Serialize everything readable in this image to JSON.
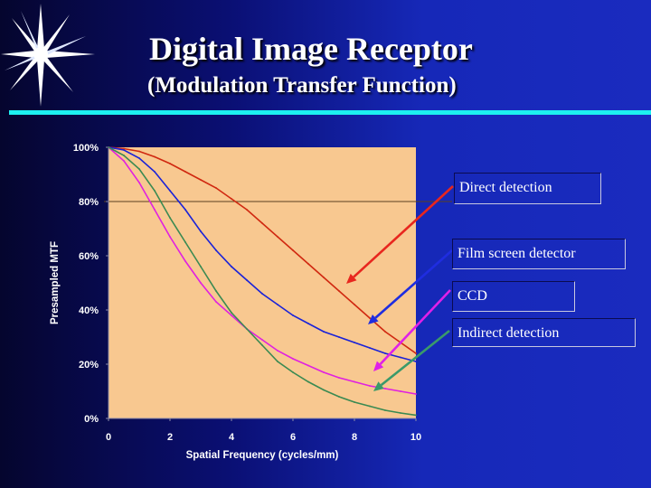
{
  "slide": {
    "title": "Digital Image Receptor",
    "subtitle": "(Modulation Transfer Function)"
  },
  "legend": [
    {
      "label": "Direct detection",
      "arrow_color": "#e8261e"
    },
    {
      "label": "Film screen detector",
      "arrow_color": "#1f2de0"
    },
    {
      "label": "CCD",
      "arrow_color": "#e020e8"
    },
    {
      "label": "Indirect detection",
      "arrow_color": "#3a9a6a"
    }
  ],
  "colors": {
    "plot_background": "#f8c890",
    "reference_line": "#5a4020",
    "direct": "#d02810",
    "film_screen": "#1a22d8",
    "ccd": "#e020e0",
    "indirect": "#3a8a52",
    "accent_bar": "#1df0f0"
  },
  "icons": {
    "decoration": "starburst-icon"
  },
  "chart_data": {
    "type": "line",
    "xlabel": "Spatial Frequency (cycles/mm)",
    "ylabel": "Presampled MTF",
    "xlim": [
      0,
      10
    ],
    "ylim": [
      0,
      100
    ],
    "xticks": [
      "0",
      "2",
      "4",
      "6",
      "8",
      "10"
    ],
    "yticks": [
      "0%",
      "20%",
      "40%",
      "60%",
      "80%",
      "100%"
    ],
    "grid": false,
    "reference_line_y": 80,
    "series": [
      {
        "name": "Direct detection",
        "color": "#d02810",
        "x": [
          0,
          0.5,
          1,
          1.5,
          2,
          2.5,
          3,
          3.5,
          4,
          4.5,
          5,
          5.5,
          6,
          6.5,
          7,
          7.5,
          8,
          8.5,
          9,
          9.5,
          10
        ],
        "y": [
          100,
          99.5,
          98.5,
          96.5,
          94,
          91,
          88,
          85,
          81,
          77,
          72,
          67,
          62,
          57,
          52,
          47,
          42,
          37,
          32,
          28,
          24
        ]
      },
      {
        "name": "Film screen detector",
        "color": "#1a22d8",
        "x": [
          0,
          0.5,
          1,
          1.5,
          2,
          2.5,
          3,
          3.5,
          4,
          4.5,
          5,
          5.5,
          6,
          6.5,
          7,
          7.5,
          8,
          8.5,
          9,
          9.5,
          10
        ],
        "y": [
          100,
          99,
          96,
          91,
          84,
          77,
          69,
          62,
          56,
          51,
          46,
          42,
          38,
          35,
          32,
          30,
          28,
          26,
          24,
          22.5,
          21
        ]
      },
      {
        "name": "CCD",
        "color": "#e020e0",
        "x": [
          0,
          0.5,
          1,
          1.5,
          2,
          2.5,
          3,
          3.5,
          4,
          4.5,
          5,
          5.5,
          6,
          6.5,
          7,
          7.5,
          8,
          8.5,
          9,
          9.5,
          10
        ],
        "y": [
          100,
          95,
          87,
          77,
          67,
          58,
          50,
          43,
          38,
          33,
          29,
          25,
          22,
          19.5,
          17,
          15,
          13.5,
          12,
          11,
          10,
          9
        ]
      },
      {
        "name": "Indirect detection",
        "color": "#3a8a52",
        "x": [
          0,
          0.5,
          1,
          1.5,
          2,
          2.5,
          3,
          3.5,
          4,
          4.5,
          5,
          5.5,
          6,
          6.5,
          7,
          7.5,
          8,
          8.5,
          9,
          9.5,
          10
        ],
        "y": [
          100,
          97,
          92,
          84,
          74,
          65,
          56,
          47,
          39,
          33,
          27,
          21,
          17,
          13.5,
          10.5,
          8,
          6,
          4.5,
          3,
          2,
          1.2
        ]
      }
    ]
  }
}
